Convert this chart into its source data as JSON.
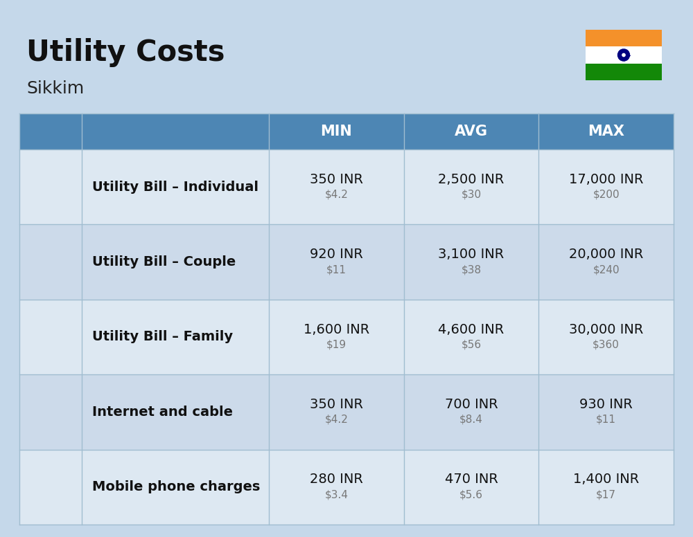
{
  "title": "Utility Costs",
  "subtitle": "Sikkim",
  "background_color": "#c5d8ea",
  "header_color": "#4d86b4",
  "row_color_odd": "#dde8f2",
  "row_color_even": "#ccdaea",
  "header_text_color": "#ffffff",
  "cell_border_color": "#a0bdd0",
  "header_labels": [
    "MIN",
    "AVG",
    "MAX"
  ],
  "rows": [
    {
      "label": "Utility Bill – Individual",
      "min_inr": "350 INR",
      "min_usd": "$4.2",
      "avg_inr": "2,500 INR",
      "avg_usd": "$30",
      "max_inr": "17,000 INR",
      "max_usd": "$200"
    },
    {
      "label": "Utility Bill – Couple",
      "min_inr": "920 INR",
      "min_usd": "$11",
      "avg_inr": "3,100 INR",
      "avg_usd": "$38",
      "max_inr": "20,000 INR",
      "max_usd": "$240"
    },
    {
      "label": "Utility Bill – Family",
      "min_inr": "1,600 INR",
      "min_usd": "$19",
      "avg_inr": "4,600 INR",
      "avg_usd": "$56",
      "max_inr": "30,000 INR",
      "max_usd": "$360"
    },
    {
      "label": "Internet and cable",
      "min_inr": "350 INR",
      "min_usd": "$4.2",
      "avg_inr": "700 INR",
      "avg_usd": "$8.4",
      "max_inr": "930 INR",
      "max_usd": "$11"
    },
    {
      "label": "Mobile phone charges",
      "min_inr": "280 INR",
      "min_usd": "$3.4",
      "avg_inr": "470 INR",
      "avg_usd": "$5.6",
      "max_inr": "1,400 INR",
      "max_usd": "$17"
    }
  ],
  "title_fontsize": 30,
  "subtitle_fontsize": 18,
  "header_fontsize": 15,
  "label_fontsize": 14,
  "value_fontsize": 14,
  "usd_fontsize": 11,
  "flag_orange": "#F4912A",
  "flag_white": "#FFFFFF",
  "flag_green": "#138808",
  "flag_navy": "#000080"
}
